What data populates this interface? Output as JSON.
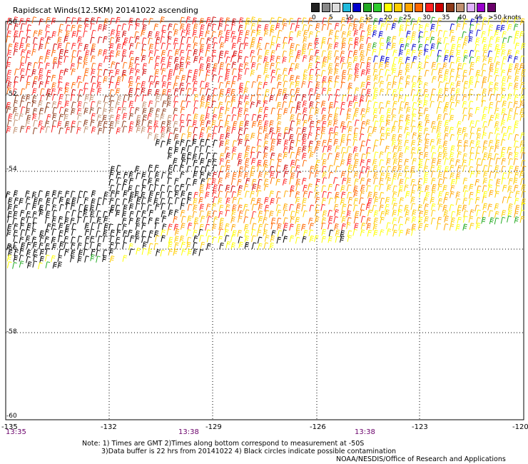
{
  "title": "Rapidscat Winds(12.5KM) 20141022 ascending",
  "legend": {
    "colors": [
      "#222222",
      "#888888",
      "#dddddd",
      "#22bbdd",
      "#0000cc",
      "#22aa22",
      "#2ecc2e",
      "#ffff00",
      "#ffcc00",
      "#ffa500",
      "#ff6600",
      "#ff2020",
      "#cc0000",
      "#8b3a1a",
      "#c09070",
      "#e0b0ff",
      "#9900cc",
      "#6a006a"
    ],
    "labels": [
      "0",
      "5",
      "10",
      "15",
      "20",
      "25",
      "30",
      "35",
      "40",
      "45"
    ],
    "unit": ">50 knots"
  },
  "map": {
    "lon_ticks": [
      "-135",
      "-132",
      "-129",
      "-126",
      "-123",
      "-120"
    ],
    "lat_ticks": [
      "-50",
      "-52",
      "-54",
      "-56",
      "-58",
      "-60"
    ],
    "time_labels": [
      "13:35",
      "13:38",
      "13:38"
    ]
  },
  "notes": {
    "line1": "Note: 1) Times are GMT 2)Times along bottom correspond to measurement at -50S",
    "line2": "3)Data buffer is 22 hrs from 20141022 4) Black circles indicate possible contamination",
    "line3": "NOAA/NESDIS/Office of Research and Applications"
  }
}
